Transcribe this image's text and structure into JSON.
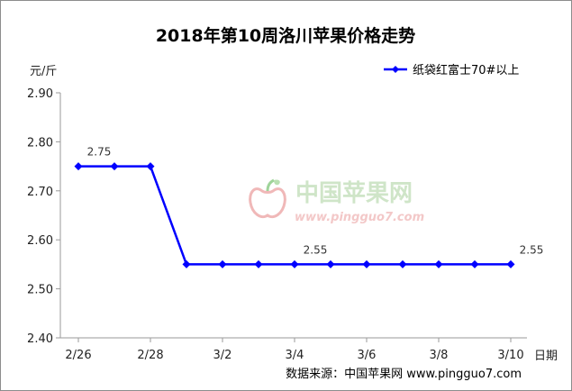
{
  "chart_data": {
    "type": "line",
    "title": "2018年第10周洛川苹果价格走势",
    "ylabel": "元/斤",
    "xlabel": "日期",
    "ylim": [
      2.4,
      2.9
    ],
    "yticks": [
      "2.90",
      "2.80",
      "2.70",
      "2.60",
      "2.50",
      "2.40"
    ],
    "xtick_labels": [
      "2/26",
      "2/28",
      "3/2",
      "3/4",
      "3/6",
      "3/8",
      "3/10"
    ],
    "series": [
      {
        "name": "纸袋红富士70#以上",
        "color": "#0000ff",
        "values": [
          2.75,
          2.75,
          2.75,
          2.55,
          2.55,
          2.55,
          2.55,
          2.55,
          2.55,
          2.55,
          2.55,
          2.55,
          2.55
        ]
      }
    ],
    "data_labels": [
      {
        "index": 0,
        "text": "2.75"
      },
      {
        "index": 6,
        "text": "2.55"
      },
      {
        "index": 12,
        "text": "2.55"
      }
    ],
    "legend_position": "top-right"
  },
  "watermark": {
    "text": "中国苹果网",
    "url": "www.pingguo7.com",
    "icon": "apple-logo-icon"
  },
  "source": "数据来源：中国苹果网 www.pingguo7.com"
}
